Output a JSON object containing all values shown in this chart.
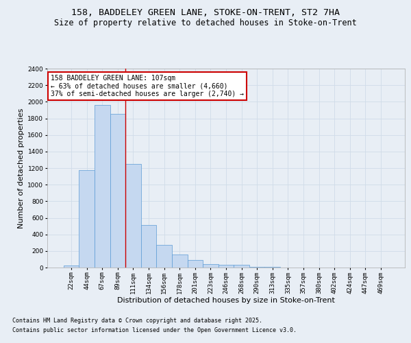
{
  "title_line1": "158, BADDELEY GREEN LANE, STOKE-ON-TRENT, ST2 7HA",
  "title_line2": "Size of property relative to detached houses in Stoke-on-Trent",
  "xlabel": "Distribution of detached houses by size in Stoke-on-Trent",
  "ylabel": "Number of detached properties",
  "categories": [
    "22sqm",
    "44sqm",
    "67sqm",
    "89sqm",
    "111sqm",
    "134sqm",
    "156sqm",
    "178sqm",
    "201sqm",
    "223sqm",
    "246sqm",
    "268sqm",
    "290sqm",
    "313sqm",
    "335sqm",
    "357sqm",
    "380sqm",
    "402sqm",
    "424sqm",
    "447sqm",
    "469sqm"
  ],
  "values": [
    25,
    1175,
    1960,
    1850,
    1250,
    510,
    270,
    160,
    95,
    45,
    35,
    30,
    10,
    5,
    3,
    2,
    1,
    1,
    0,
    0,
    0
  ],
  "bar_color": "#c5d8f0",
  "bar_edge_color": "#5b9bd5",
  "grid_color": "#d0dce8",
  "background_color": "#e8eef5",
  "annotation_box_text": "158 BADDELEY GREEN LANE: 107sqm\n← 63% of detached houses are smaller (4,660)\n37% of semi-detached houses are larger (2,740) →",
  "annotation_box_color": "#ffffff",
  "annotation_box_edge_color": "#cc0000",
  "vline_color": "#cc0000",
  "vline_index": 3.5,
  "ylim": [
    0,
    2400
  ],
  "yticks": [
    0,
    200,
    400,
    600,
    800,
    1000,
    1200,
    1400,
    1600,
    1800,
    2000,
    2200,
    2400
  ],
  "footer_line1": "Contains HM Land Registry data © Crown copyright and database right 2025.",
  "footer_line2": "Contains public sector information licensed under the Open Government Licence v3.0.",
  "title_fontsize": 9.5,
  "subtitle_fontsize": 8.5,
  "axis_label_fontsize": 8,
  "tick_fontsize": 6.5,
  "annotation_fontsize": 7,
  "footer_fontsize": 6
}
